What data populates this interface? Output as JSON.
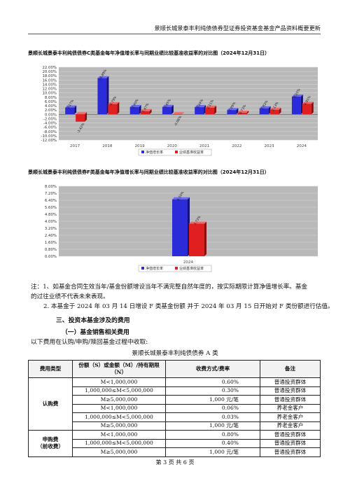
{
  "header": {
    "text": "景顺长城景泰丰利纯债债券型证券投资基金基金产品资料概要更新"
  },
  "chart1": {
    "title": "景顺长城景泰丰利纯债债券C类基金每年净值增长率与同期业绩比较基准收益率的对比图（2024年12月31日）",
    "legend": [
      "净值增长率",
      "业绩基准收益率"
    ],
    "colors": {
      "fund": "#2b2bd9",
      "bench": "#e02020"
    },
    "chart_data": {
      "type": "bar",
      "categories": [
        "2017",
        "2018",
        "2019",
        "2020",
        "2021",
        "2022",
        "2023",
        "2024"
      ],
      "series": [
        {
          "name": "净值增长率",
          "values": [
            3.17,
            16.89,
            3.4,
            3.45,
            3.34,
            1.99,
            2.83,
            8.25
          ]
        },
        {
          "name": "业绩基准收益率",
          "values": [
            -3.42,
            4.79,
            1.47,
            -0.08,
            3.11,
            0.73,
            2.13,
            4.91
          ]
        }
      ],
      "ylim": [
        -12,
        22
      ],
      "ticks": [
        "22.00%",
        "20.00%",
        "18.00%",
        "16.00%",
        "14.00%",
        "12.00%",
        "10.00%",
        "8.00%",
        "6.00%",
        "4.00%",
        "2.00%",
        "0.00%",
        "-2.00%",
        "-4.00%",
        "-6.00%",
        "-8.00%",
        "-10.00%",
        "-12.00%"
      ],
      "data_labels_fund": [
        "3.17%",
        "16.89%",
        "3.40%",
        "3.45%",
        "3.34%",
        "1.99%",
        "2.83%",
        "8.25%"
      ],
      "data_labels_bench": [
        "-3.42%",
        "4.79%",
        "1.47%",
        "-0.08%",
        "3.11%",
        "0.73%",
        "2.13%",
        "4.91%"
      ]
    }
  },
  "chart2": {
    "title": "景顺长城景泰丰利纯债债券F类基金每年净值增长率与同期业绩比较基准收益率的对比图（2024年12月31日）",
    "legend": [
      "净值增长率",
      "业绩基准收益率"
    ],
    "chart_data": {
      "type": "bar",
      "categories": [
        "2024"
      ],
      "series": [
        {
          "name": "净值增长率",
          "values": [
            6.5
          ]
        },
        {
          "name": "业绩基准收益率",
          "values": [
            3.72
          ]
        }
      ],
      "ylim": [
        0,
        8
      ],
      "ticks": [
        "8.00%",
        "7.20%",
        "6.40%",
        "5.60%",
        "4.80%",
        "4.00%",
        "3.20%",
        "2.40%",
        "1.60%",
        "0.80%",
        "0.00%"
      ],
      "data_labels_fund": [
        "6.50%"
      ],
      "data_labels_bench": [
        "3.72%"
      ]
    }
  },
  "notes": {
    "n1a": "注：1、如基金合同生效当年/基金份额增设当年不满完整自然年度的，按实际期限计算净值增长率。基金",
    "n1b": "的过往业绩不代表未来表现。",
    "n2": "2. 本基金于 2024 年 03 月 14 日增设 F 类基金份额 并于 2024 年 03 月 15 日开始对 F 类份额进行估值。"
  },
  "section": {
    "title": "三、投资本基金涉及的费用",
    "sub": "（一）基金销售相关费用",
    "intro": "以下费用在认购/申购/赎回基金过程中收取:"
  },
  "table": {
    "caption": "景顺长城景泰丰利纯债债券 A 类",
    "headers": [
      "费用类型",
      "份额（S）或金额（M）/持有期限（N）",
      "收费方式/费率",
      "备注"
    ],
    "groups": [
      {
        "type": "认购费",
        "rows": [
          [
            "M<1,000,000",
            "0.60%",
            "普通投资群体"
          ],
          [
            "1,000,000≤M<5,000,000",
            "0.30%",
            "普通投资群体"
          ],
          [
            "M≥5,000,000",
            "1,000 元/笔",
            "普通投资群体"
          ],
          [
            "M<1,000,000",
            "0.06%",
            "养老金客户"
          ],
          [
            "1,000,000≤M<5,000,000",
            "0.03%",
            "养老金客户"
          ],
          [
            "M≥5,000,000",
            "1,000 元/笔",
            "养老金客户"
          ]
        ]
      },
      {
        "type": "申购费",
        "type2": "（前收费）",
        "rows": [
          [
            "M<1,000,000",
            "0.80%",
            "普通投资群体"
          ],
          [
            "1,000,000≤M<5,000,000",
            "0.40%",
            "普通投资群体"
          ],
          [
            "M≥5,000,000",
            "1,000 元/笔",
            "普通投资群体"
          ]
        ]
      }
    ]
  },
  "footer": "第 3 页 共 6 页"
}
